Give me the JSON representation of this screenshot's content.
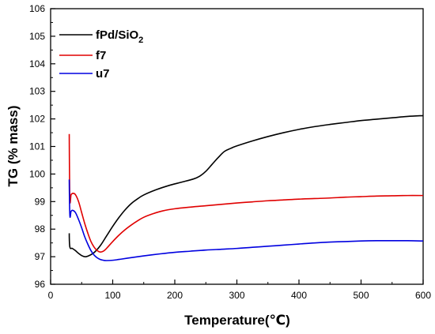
{
  "chart_data": {
    "type": "line",
    "xlabel": "Temperature(℃)",
    "ylabel": "TG (% mass)",
    "xlim": [
      0,
      600
    ],
    "ylim": [
      96,
      106
    ],
    "xticks": [
      0,
      100,
      200,
      300,
      400,
      500,
      600
    ],
    "yticks": [
      96,
      97,
      98,
      99,
      100,
      101,
      102,
      103,
      104,
      105,
      106
    ],
    "grid": false,
    "legend_position": "top-left",
    "series": [
      {
        "name": "fPd/SiO",
        "name_sub": "2",
        "color": "#000000",
        "points": [
          [
            30,
            97.85
          ],
          [
            31,
            97.35
          ],
          [
            35,
            97.3
          ],
          [
            40,
            97.22
          ],
          [
            45,
            97.12
          ],
          [
            50,
            97.04
          ],
          [
            55,
            97.0
          ],
          [
            60,
            97.02
          ],
          [
            70,
            97.15
          ],
          [
            80,
            97.4
          ],
          [
            90,
            97.75
          ],
          [
            100,
            98.1
          ],
          [
            110,
            98.42
          ],
          [
            120,
            98.7
          ],
          [
            130,
            98.93
          ],
          [
            140,
            99.1
          ],
          [
            150,
            99.24
          ],
          [
            170,
            99.43
          ],
          [
            190,
            99.58
          ],
          [
            210,
            99.7
          ],
          [
            230,
            99.82
          ],
          [
            240,
            99.92
          ],
          [
            250,
            100.1
          ],
          [
            260,
            100.35
          ],
          [
            270,
            100.6
          ],
          [
            280,
            100.82
          ],
          [
            290,
            100.93
          ],
          [
            300,
            101.02
          ],
          [
            325,
            101.2
          ],
          [
            350,
            101.36
          ],
          [
            375,
            101.5
          ],
          [
            400,
            101.62
          ],
          [
            425,
            101.72
          ],
          [
            450,
            101.8
          ],
          [
            475,
            101.87
          ],
          [
            500,
            101.94
          ],
          [
            525,
            101.99
          ],
          [
            550,
            102.04
          ],
          [
            575,
            102.09
          ],
          [
            600,
            102.12
          ]
        ]
      },
      {
        "name": "f7",
        "color": "#e00000",
        "points": [
          [
            30,
            101.45
          ],
          [
            31,
            99.1
          ],
          [
            33,
            99.25
          ],
          [
            36,
            99.3
          ],
          [
            40,
            99.25
          ],
          [
            45,
            99.0
          ],
          [
            50,
            98.6
          ],
          [
            55,
            98.2
          ],
          [
            60,
            97.85
          ],
          [
            65,
            97.55
          ],
          [
            70,
            97.35
          ],
          [
            75,
            97.22
          ],
          [
            80,
            97.17
          ],
          [
            85,
            97.2
          ],
          [
            90,
            97.3
          ],
          [
            100,
            97.55
          ],
          [
            110,
            97.78
          ],
          [
            120,
            97.98
          ],
          [
            130,
            98.15
          ],
          [
            140,
            98.3
          ],
          [
            150,
            98.43
          ],
          [
            165,
            98.56
          ],
          [
            180,
            98.66
          ],
          [
            200,
            98.74
          ],
          [
            225,
            98.8
          ],
          [
            250,
            98.85
          ],
          [
            275,
            98.9
          ],
          [
            300,
            98.95
          ],
          [
            325,
            98.99
          ],
          [
            350,
            99.03
          ],
          [
            375,
            99.06
          ],
          [
            400,
            99.09
          ],
          [
            425,
            99.11
          ],
          [
            450,
            99.13
          ],
          [
            475,
            99.16
          ],
          [
            500,
            99.18
          ],
          [
            525,
            99.2
          ],
          [
            550,
            99.21
          ],
          [
            575,
            99.22
          ],
          [
            600,
            99.22
          ]
        ]
      },
      {
        "name": "u7",
        "color": "#0000e0",
        "points": [
          [
            30,
            99.8
          ],
          [
            31,
            98.5
          ],
          [
            33,
            98.65
          ],
          [
            36,
            98.68
          ],
          [
            40,
            98.6
          ],
          [
            45,
            98.35
          ],
          [
            50,
            98.05
          ],
          [
            55,
            97.72
          ],
          [
            60,
            97.45
          ],
          [
            65,
            97.22
          ],
          [
            70,
            97.06
          ],
          [
            75,
            96.96
          ],
          [
            80,
            96.9
          ],
          [
            85,
            96.87
          ],
          [
            90,
            96.86
          ],
          [
            100,
            96.87
          ],
          [
            110,
            96.9
          ],
          [
            125,
            96.95
          ],
          [
            150,
            97.03
          ],
          [
            175,
            97.1
          ],
          [
            200,
            97.16
          ],
          [
            225,
            97.2
          ],
          [
            250,
            97.24
          ],
          [
            275,
            97.27
          ],
          [
            300,
            97.3
          ],
          [
            325,
            97.34
          ],
          [
            350,
            97.38
          ],
          [
            375,
            97.42
          ],
          [
            400,
            97.46
          ],
          [
            425,
            97.5
          ],
          [
            450,
            97.53
          ],
          [
            475,
            97.55
          ],
          [
            500,
            97.57
          ],
          [
            525,
            97.58
          ],
          [
            550,
            97.58
          ],
          [
            575,
            97.58
          ],
          [
            600,
            97.57
          ]
        ]
      }
    ]
  }
}
